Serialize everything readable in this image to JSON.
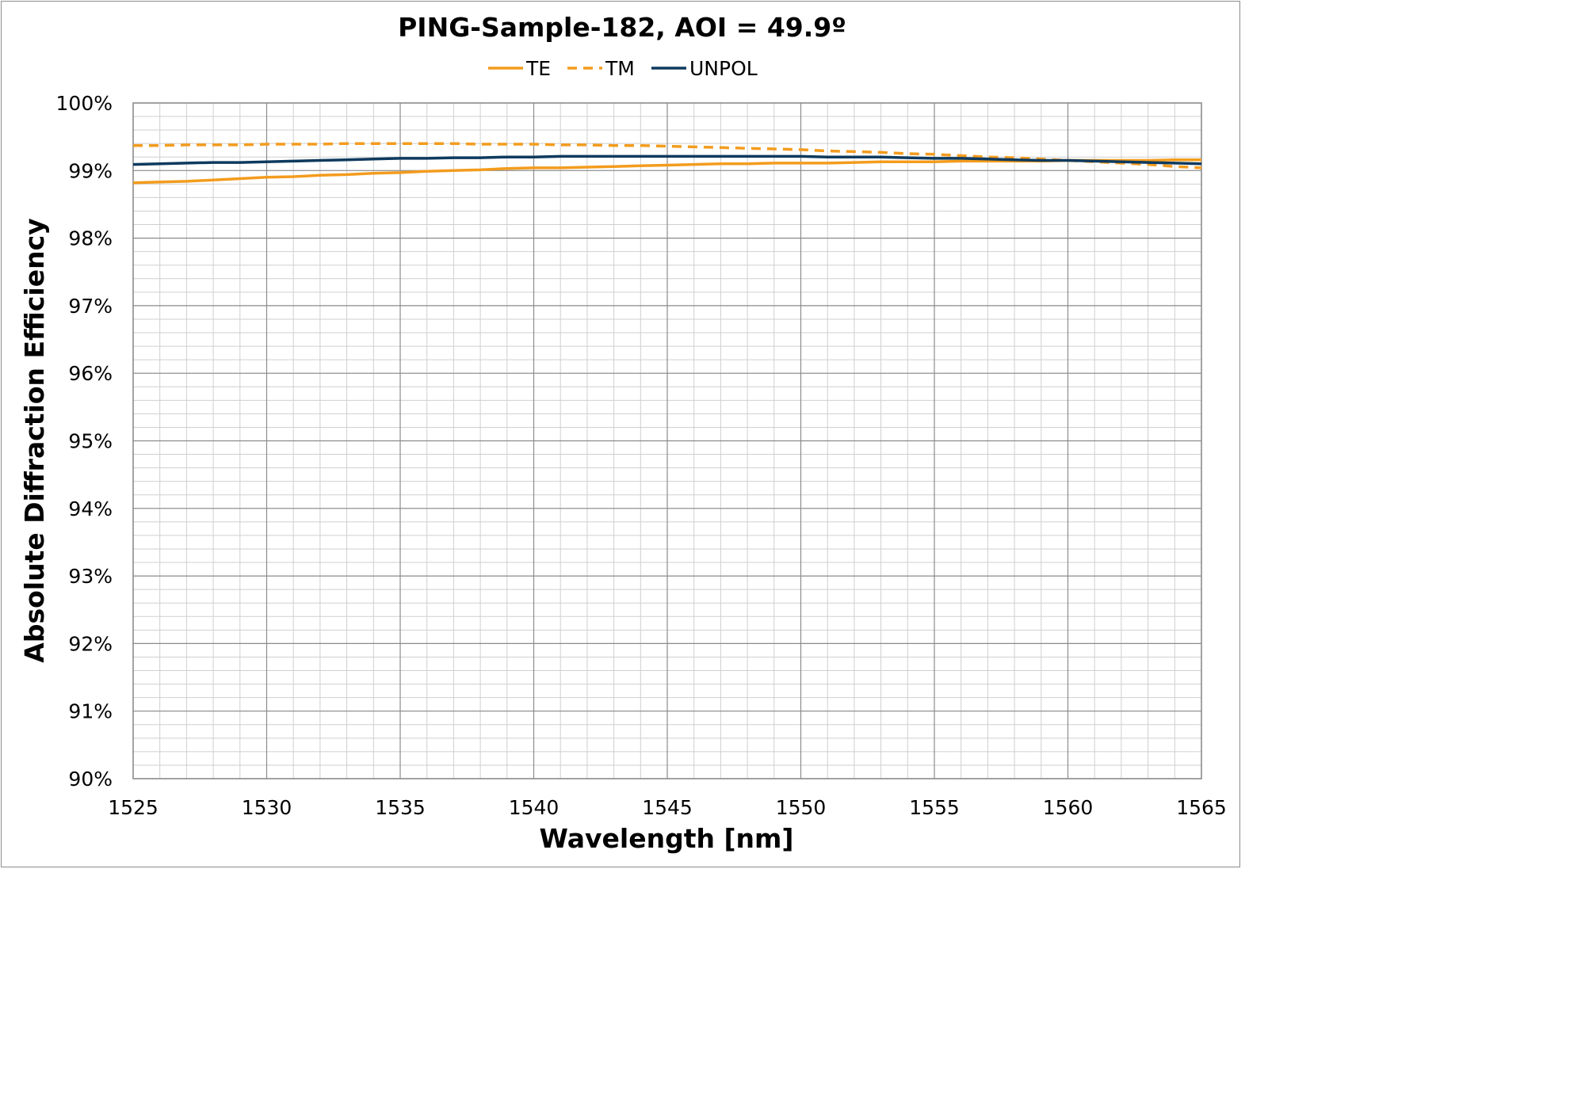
{
  "chart_data": {
    "type": "line",
    "title": "PING-Sample-182, AOI = 49.9º",
    "xlabel": "Wavelength [nm]",
    "ylabel": "Absolute Diffraction Efficiency",
    "xlim": [
      1525,
      1565
    ],
    "ylim": [
      0.9,
      1.0
    ],
    "x_ticks": [
      1525,
      1530,
      1535,
      1540,
      1545,
      1550,
      1555,
      1560,
      1565
    ],
    "x_tick_labels": [
      "1525",
      "1530",
      "1535",
      "1540",
      "1545",
      "1550",
      "1555",
      "1560",
      "1565"
    ],
    "y_ticks": [
      0.9,
      0.91,
      0.92,
      0.93,
      0.94,
      0.95,
      0.96,
      0.97,
      0.98,
      0.99,
      1.0
    ],
    "y_tick_labels": [
      "90%",
      "91%",
      "92%",
      "93%",
      "94%",
      "95%",
      "96%",
      "97%",
      "98%",
      "99%",
      "100%"
    ],
    "grid": true,
    "legend_position": "top-center",
    "x": [
      1525,
      1526,
      1527,
      1528,
      1529,
      1530,
      1531,
      1532,
      1533,
      1534,
      1535,
      1536,
      1537,
      1538,
      1539,
      1540,
      1541,
      1542,
      1543,
      1544,
      1545,
      1546,
      1547,
      1548,
      1549,
      1550,
      1551,
      1552,
      1553,
      1554,
      1555,
      1556,
      1557,
      1558,
      1559,
      1560,
      1561,
      1562,
      1563,
      1564,
      1565
    ],
    "series": [
      {
        "name": "TE",
        "color": "#F39C1E",
        "dash": "solid",
        "values": [
          0.9882,
          0.9883,
          0.9884,
          0.9886,
          0.9888,
          0.989,
          0.9891,
          0.9893,
          0.9894,
          0.9896,
          0.9897,
          0.9899,
          0.99,
          0.9901,
          0.9903,
          0.9904,
          0.9904,
          0.9905,
          0.9906,
          0.9907,
          0.9908,
          0.9909,
          0.991,
          0.991,
          0.9911,
          0.9911,
          0.9911,
          0.9912,
          0.9913,
          0.9913,
          0.9913,
          0.9914,
          0.9914,
          0.9914,
          0.9914,
          0.9915,
          0.9915,
          0.9915,
          0.9915,
          0.9916,
          0.9916
        ]
      },
      {
        "name": "TM",
        "color": "#F39C1E",
        "dash": "dashed",
        "values": [
          0.9937,
          0.9937,
          0.9938,
          0.9938,
          0.9938,
          0.9939,
          0.9939,
          0.9939,
          0.994,
          0.994,
          0.994,
          0.994,
          0.994,
          0.9939,
          0.9939,
          0.9939,
          0.9938,
          0.9938,
          0.9937,
          0.9937,
          0.9936,
          0.9935,
          0.9934,
          0.9933,
          0.9932,
          0.9931,
          0.9929,
          0.9928,
          0.9927,
          0.9925,
          0.9924,
          0.9922,
          0.992,
          0.9919,
          0.9917,
          0.9915,
          0.9913,
          0.9911,
          0.9909,
          0.9906,
          0.9904
        ]
      },
      {
        "name": "UNPOL",
        "color": "#0E3A5E",
        "dash": "solid",
        "values": [
          0.9909,
          0.991,
          0.9911,
          0.9912,
          0.9912,
          0.9913,
          0.9914,
          0.9915,
          0.9916,
          0.9917,
          0.9918,
          0.9918,
          0.9919,
          0.9919,
          0.992,
          0.992,
          0.9921,
          0.9921,
          0.9921,
          0.9921,
          0.9921,
          0.9921,
          0.9921,
          0.9921,
          0.9921,
          0.9921,
          0.992,
          0.992,
          0.992,
          0.9919,
          0.9918,
          0.9918,
          0.9917,
          0.9916,
          0.9915,
          0.9915,
          0.9914,
          0.9913,
          0.9912,
          0.9911,
          0.991
        ]
      }
    ]
  }
}
